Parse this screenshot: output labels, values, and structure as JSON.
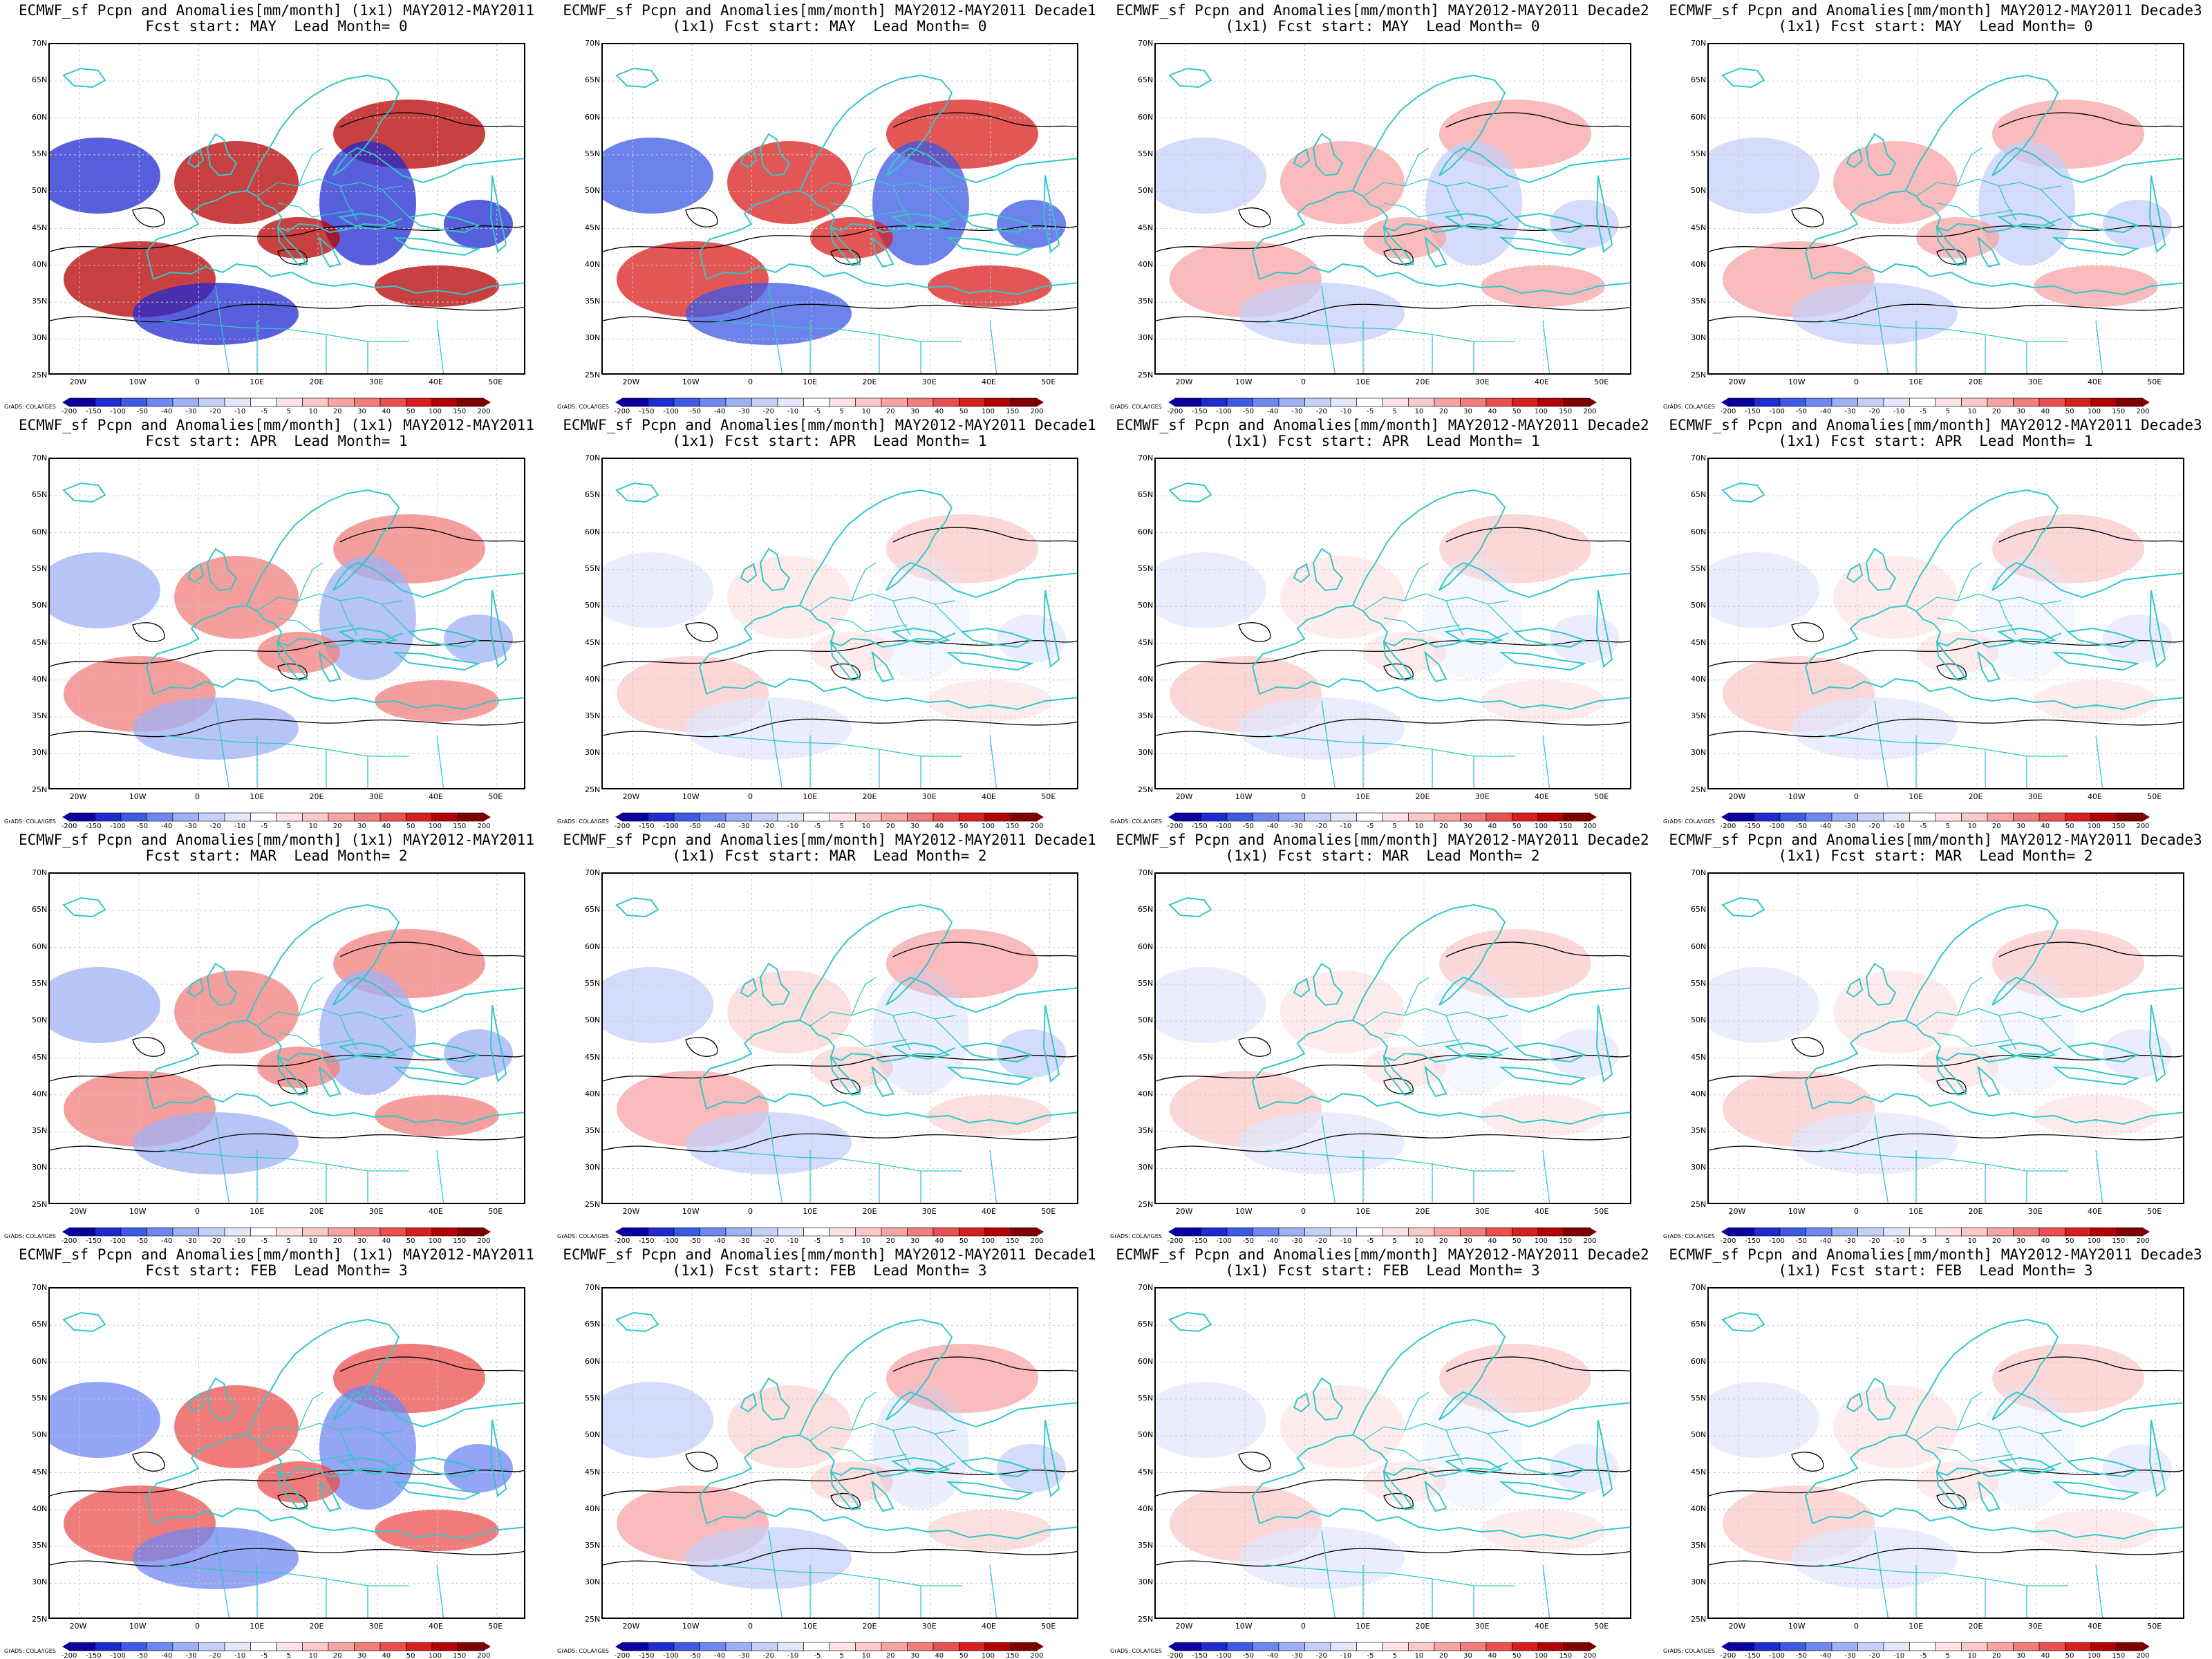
{
  "colors": {
    "coast": "#33c7c7",
    "contour": "#000000",
    "grid": "#c8c8c8",
    "palette": [
      "#0a00a0",
      "#1f2ad0",
      "#3c5ae6",
      "#6f87f0",
      "#9fb0f5",
      "#c5cff9",
      "#e2e7fc",
      "#ffffff",
      "#fde3e3",
      "#fbc9c9",
      "#f7a4a4",
      "#f27d7d",
      "#eb4f4f",
      "#d91e1e",
      "#b50000",
      "#800000"
    ]
  },
  "map": {
    "lat_labels": [
      "70N",
      "65N",
      "60N",
      "55N",
      "50N",
      "45N",
      "40N",
      "35N",
      "30N",
      "25N"
    ],
    "lon_labels": [
      "20W",
      "10W",
      "0",
      "10E",
      "20E",
      "30E",
      "40E",
      "50E"
    ]
  },
  "colorbar": {
    "labels": [
      "-200",
      "-150",
      "-100",
      "-50",
      "-40",
      "-30",
      "-20",
      "-10",
      "-5",
      "5",
      "10",
      "20",
      "30",
      "40",
      "50",
      "100",
      "150",
      "200"
    ],
    "credit": "GrADS: COLA/IGES"
  },
  "panels": [
    {
      "title1": "ECMWF_sf Pcpn and Anomalies[mm/month] (1x1) MAY2012-MAY2011",
      "title2": "Fcst start: MAY  Lead Month= 0",
      "intensity": 1.0
    },
    {
      "title1": "ECMWF_sf Pcpn and Anomalies[mm/month] MAY2012-MAY2011 Decade1",
      "title2": "(1x1) Fcst start: MAY  Lead Month= 0",
      "intensity": 0.8
    },
    {
      "title1": "ECMWF_sf Pcpn and Anomalies[mm/month] MAY2012-MAY2011 Decade2",
      "title2": "(1x1) Fcst start: MAY  Lead Month= 0",
      "intensity": 0.35
    },
    {
      "title1": "ECMWF_sf Pcpn and Anomalies[mm/month] MAY2012-MAY2011 Decade3",
      "title2": "(1x1) Fcst start: MAY  Lead Month= 0",
      "intensity": 0.3
    },
    {
      "title1": "ECMWF_sf Pcpn and Anomalies[mm/month] (1x1) MAY2012-MAY2011",
      "title2": "Fcst start: APR  Lead Month= 1",
      "intensity": 0.5
    },
    {
      "title1": "ECMWF_sf Pcpn and Anomalies[mm/month] MAY2012-MAY2011 Decade1",
      "title2": "(1x1) Fcst start: APR  Lead Month= 1",
      "intensity": 0.15
    },
    {
      "title1": "ECMWF_sf Pcpn and Anomalies[mm/month] MAY2012-MAY2011 Decade2",
      "title2": "(1x1) Fcst start: APR  Lead Month= 1",
      "intensity": 0.2
    },
    {
      "title1": "ECMWF_sf Pcpn and Anomalies[mm/month] MAY2012-MAY2011 Decade3",
      "title2": "(1x1) Fcst start: APR  Lead Month= 1",
      "intensity": 0.2
    },
    {
      "title1": "ECMWF_sf Pcpn and Anomalies[mm/month] (1x1) MAY2012-MAY2011",
      "title2": "Fcst start: MAR  Lead Month= 2",
      "intensity": 0.55
    },
    {
      "title1": "ECMWF_sf Pcpn and Anomalies[mm/month] MAY2012-MAY2011 Decade1",
      "title2": "(1x1) Fcst start: MAR  Lead Month= 2",
      "intensity": 0.25
    },
    {
      "title1": "ECMWF_sf Pcpn and Anomalies[mm/month] MAY2012-MAY2011 Decade2",
      "title2": "(1x1) Fcst start: MAR  Lead Month= 2",
      "intensity": 0.2
    },
    {
      "title1": "ECMWF_sf Pcpn and Anomalies[mm/month] MAY2012-MAY2011 Decade3",
      "title2": "(1x1) Fcst start: MAR  Lead Month= 2",
      "intensity": 0.2
    },
    {
      "title1": "ECMWF_sf Pcpn and Anomalies[mm/month] (1x1) MAY2012-MAY2011",
      "title2": "Fcst start: FEB  Lead Month= 3",
      "intensity": 0.6
    },
    {
      "title1": "ECMWF_sf Pcpn and Anomalies[mm/month] MAY2012-MAY2011 Decade1",
      "title2": "(1x1) Fcst start: FEB  Lead Month= 3",
      "intensity": 0.25
    },
    {
      "title1": "ECMWF_sf Pcpn and Anomalies[mm/month] MAY2012-MAY2011 Decade2",
      "title2": "(1x1) Fcst start: FEB  Lead Month= 3",
      "intensity": 0.2
    },
    {
      "title1": "ECMWF_sf Pcpn and Anomalies[mm/month] MAY2012-MAY2011 Decade3",
      "title2": "(1x1) Fcst start: FEB  Lead Month= 3",
      "intensity": 0.2
    }
  ]
}
